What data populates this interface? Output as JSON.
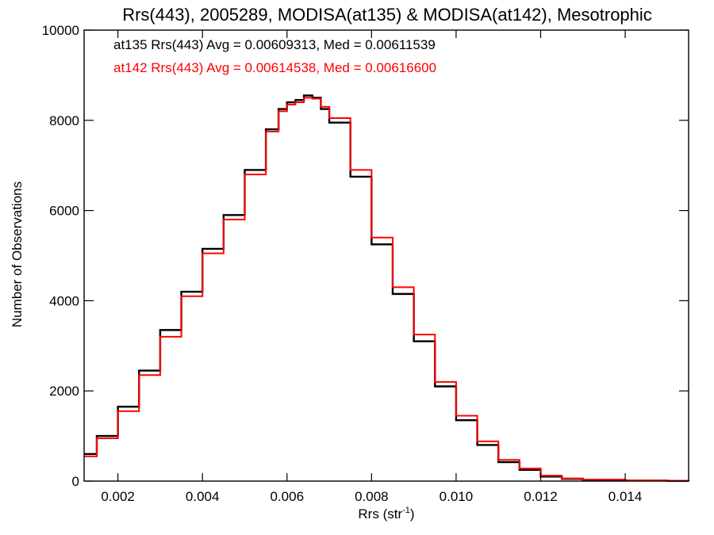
{
  "chart_data": {
    "type": "line",
    "title": "Rrs(443), 2005289, MODISA(at135) & MODISA(at142), Mesotrophic",
    "xlabel_main": "Rrs (str",
    "xlabel_sup": "-1",
    "xlabel_close": ")",
    "ylabel": "Number of Observations",
    "xlim": [
      0.0012,
      0.0155
    ],
    "ylim": [
      0,
      10000
    ],
    "x_ticks": [
      0.002,
      0.004,
      0.006,
      0.008,
      0.01,
      0.012,
      0.014
    ],
    "x_tick_labels": [
      "0.002",
      "0.004",
      "0.006",
      "0.008",
      "0.010",
      "0.012",
      "0.014"
    ],
    "y_ticks": [
      0,
      2000,
      4000,
      6000,
      8000,
      10000
    ],
    "y_tick_labels": [
      "0",
      "2000",
      "4000",
      "6000",
      "8000",
      "10000"
    ],
    "grid": false,
    "annotations": [
      {
        "text": "at135 Rrs(443) Avg = 0.00609313, Med = 0.00611539",
        "color": "#000000"
      },
      {
        "text": "at142 Rrs(443) Avg = 0.00614538, Med = 0.00616600",
        "color": "#ff0000"
      }
    ],
    "series": [
      {
        "color": "#000000",
        "x": [
          0.0012,
          0.0015,
          0.002,
          0.0025,
          0.003,
          0.0035,
          0.004,
          0.0045,
          0.005,
          0.0055,
          0.0058,
          0.006,
          0.0062,
          0.0064,
          0.0066,
          0.0068,
          0.007,
          0.0075,
          0.008,
          0.0085,
          0.009,
          0.0095,
          0.01,
          0.0105,
          0.011,
          0.0115,
          0.012,
          0.0125,
          0.013,
          0.014,
          0.015,
          0.0155
        ],
        "y": [
          600,
          1000,
          1650,
          2450,
          3350,
          4200,
          5150,
          5900,
          6900,
          7800,
          8250,
          8400,
          8450,
          8550,
          8500,
          8250,
          7950,
          6750,
          5250,
          4150,
          3100,
          2100,
          1350,
          800,
          420,
          250,
          100,
          50,
          30,
          15,
          5,
          0
        ]
      },
      {
        "color": "#ff0000",
        "x": [
          0.0012,
          0.0015,
          0.002,
          0.0025,
          0.003,
          0.0035,
          0.004,
          0.0045,
          0.005,
          0.0055,
          0.0058,
          0.006,
          0.0062,
          0.0064,
          0.0066,
          0.0068,
          0.007,
          0.0075,
          0.008,
          0.0085,
          0.009,
          0.0095,
          0.01,
          0.0105,
          0.011,
          0.0115,
          0.012,
          0.0125,
          0.013,
          0.014,
          0.015,
          0.0155
        ],
        "y": [
          550,
          950,
          1550,
          2350,
          3200,
          4100,
          5050,
          5800,
          6800,
          7750,
          8200,
          8350,
          8400,
          8500,
          8480,
          8300,
          8050,
          6900,
          5400,
          4300,
          3250,
          2200,
          1450,
          880,
          470,
          280,
          120,
          60,
          35,
          18,
          6,
          0
        ]
      }
    ]
  }
}
